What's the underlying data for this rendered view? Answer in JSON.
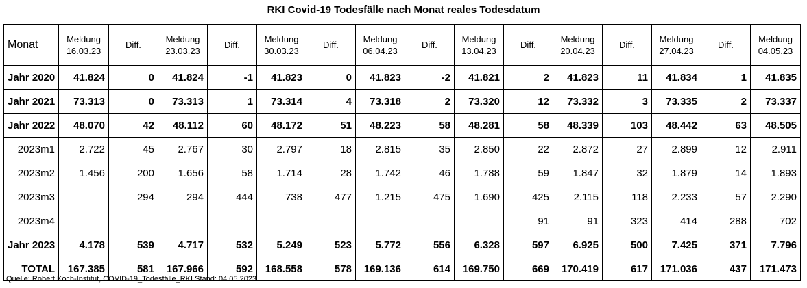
{
  "title": "RKI Covid-19 Todesfälle nach Monat reales Todesdatum",
  "header": {
    "monat": "Monat",
    "meldung_label": "Meldung",
    "diff_label": "Diff.",
    "dates": [
      "16.03.23",
      "23.03.23",
      "30.03.23",
      "06.04.23",
      "13.04.23",
      "20.04.23",
      "27.04.23",
      "04.05.23"
    ]
  },
  "rows": [
    {
      "label": "Jahr 2020",
      "bold": true,
      "cells": [
        "41.824",
        "0",
        "41.824",
        "-1",
        "41.823",
        "0",
        "41.823",
        "-2",
        "41.821",
        "2",
        "41.823",
        "11",
        "41.834",
        "1",
        "41.835"
      ]
    },
    {
      "label": "Jahr 2021",
      "bold": true,
      "cells": [
        "73.313",
        "0",
        "73.313",
        "1",
        "73.314",
        "4",
        "73.318",
        "2",
        "73.320",
        "12",
        "73.332",
        "3",
        "73.335",
        "2",
        "73.337"
      ]
    },
    {
      "label": "Jahr 2022",
      "bold": true,
      "cells": [
        "48.070",
        "42",
        "48.112",
        "60",
        "48.172",
        "51",
        "48.223",
        "58",
        "48.281",
        "58",
        "48.339",
        "103",
        "48.442",
        "63",
        "48.505"
      ]
    },
    {
      "label": "2023m1",
      "bold": false,
      "cells": [
        "2.722",
        "45",
        "2.767",
        "30",
        "2.797",
        "18",
        "2.815",
        "35",
        "2.850",
        "22",
        "2.872",
        "27",
        "2.899",
        "12",
        "2.911"
      ]
    },
    {
      "label": "2023m2",
      "bold": false,
      "cells": [
        "1.456",
        "200",
        "1.656",
        "58",
        "1.714",
        "28",
        "1.742",
        "46",
        "1.788",
        "59",
        "1.847",
        "32",
        "1.879",
        "14",
        "1.893"
      ]
    },
    {
      "label": "2023m3",
      "bold": false,
      "cells": [
        "",
        "294",
        "294",
        "444",
        "738",
        "477",
        "1.215",
        "475",
        "1.690",
        "425",
        "2.115",
        "118",
        "2.233",
        "57",
        "2.290"
      ]
    },
    {
      "label": "2023m4",
      "bold": false,
      "cells": [
        "",
        "",
        "",
        "",
        "",
        "",
        "",
        "",
        "",
        "91",
        "91",
        "323",
        "414",
        "288",
        "702"
      ]
    },
    {
      "label": "Jahr 2023",
      "bold": true,
      "cells": [
        "4.178",
        "539",
        "4.717",
        "532",
        "5.249",
        "523",
        "5.772",
        "556",
        "6.328",
        "597",
        "6.925",
        "500",
        "7.425",
        "371",
        "7.796"
      ]
    },
    {
      "label": "TOTAL",
      "bold": true,
      "cells": [
        "167.385",
        "581",
        "167.966",
        "592",
        "168.558",
        "578",
        "169.136",
        "614",
        "169.750",
        "669",
        "170.419",
        "617",
        "171.036",
        "437",
        "171.473"
      ]
    }
  ],
  "source": "Quelle: Robert Koch-Institut, COVID-19_Todesfälle_RKI Stand: 04.05.2023"
}
